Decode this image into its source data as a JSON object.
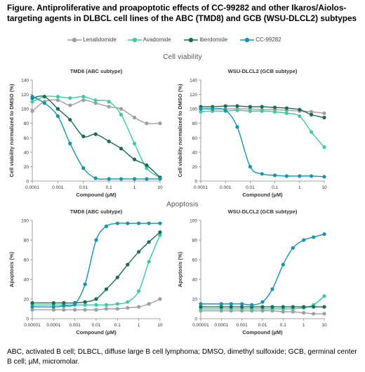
{
  "figure_title": "Figure. Antiproliferative and proapoptotic effects of CC-99282 and other Ikaros/Aiolos-targeting agents in DLBCL cell lines of the ABC (TMD8) and GCB (WSU-DLCL2) subtypes",
  "legend": [
    {
      "name": "Lenalidomide",
      "color": "#9e9e9e",
      "icon": "legend-line-marker"
    },
    {
      "name": "Avadomide",
      "color": "#3ec9a0",
      "icon": "legend-line-marker"
    },
    {
      "name": "Iberdomide",
      "color": "#1b6b4e",
      "icon": "legend-line-marker"
    },
    {
      "name": "CC-99282",
      "color": "#1593b0",
      "icon": "legend-line-marker"
    }
  ],
  "sections": {
    "viability": "Cell viability",
    "apoptosis": "Apoptosis"
  },
  "footnote": "ABC, activated B cell; DLBCL, diffuse large B cell lymphoma; DMSO, dimethyl sulfoxide; GCB, germinal center B cell; µM, micromolar.",
  "chart_data": [
    {
      "type": "scatter",
      "title": "TMD8 (ABC subtype)",
      "xlabel": "Compound (µM)",
      "ylabel": "Cell viability normalized to DMSO (%)",
      "xscale": "log",
      "xlim": [
        0.0001,
        10
      ],
      "ylim": [
        0,
        140
      ],
      "x_ticks": [
        "0.0001",
        "0.001",
        "0.01",
        "0.1",
        "1",
        "10"
      ],
      "y_ticks": [
        "0",
        "20",
        "40",
        "60",
        "80",
        "100",
        "120",
        "140"
      ],
      "grid": false,
      "series": [
        {
          "name": "Lenalidomide",
          "color": "#9e9e9e",
          "x": [
            0.0001,
            0.0003,
            0.001,
            0.003,
            0.01,
            0.03,
            0.1,
            0.3,
            1,
            3,
            10
          ],
          "y": [
            97,
            110,
            112,
            105,
            112,
            108,
            103,
            100,
            88,
            80,
            80
          ]
        },
        {
          "name": "Avadomide",
          "color": "#3ec9a0",
          "x": [
            0.0001,
            0.0003,
            0.001,
            0.003,
            0.01,
            0.03,
            0.1,
            0.3,
            1,
            3,
            10
          ],
          "y": [
            110,
            117,
            117,
            115,
            117,
            112,
            110,
            92,
            52,
            18,
            5
          ]
        },
        {
          "name": "Iberdomide",
          "color": "#1b6b4e",
          "x": [
            0.0001,
            0.0003,
            0.001,
            0.003,
            0.01,
            0.03,
            0.1,
            0.3,
            1,
            3,
            10
          ],
          "y": [
            115,
            117,
            100,
            85,
            62,
            65,
            55,
            45,
            30,
            22,
            5
          ]
        },
        {
          "name": "CC-99282",
          "color": "#1593b0",
          "x": [
            0.0001,
            0.0003,
            0.001,
            0.003,
            0.01,
            0.03,
            0.1,
            0.3,
            1,
            3,
            10
          ],
          "y": [
            117,
            108,
            90,
            52,
            18,
            4,
            3,
            3,
            3,
            3,
            3
          ]
        }
      ]
    },
    {
      "type": "scatter",
      "title": "WSU-DLCL2 (GCB subtype)",
      "xlabel": "Compound (µM)",
      "ylabel": "Cell viability normalized to DMSO (%)",
      "xscale": "log",
      "xlim": [
        0.0001,
        10
      ],
      "ylim": [
        0,
        140
      ],
      "x_ticks": [
        "0.0001",
        "0.001",
        "0.01",
        "0.1",
        "1",
        "10"
      ],
      "y_ticks": [
        "0",
        "20",
        "40",
        "60",
        "80",
        "100",
        "120",
        "140"
      ],
      "grid": false,
      "series": [
        {
          "name": "Lenalidomide",
          "color": "#9e9e9e",
          "x": [
            0.0001,
            0.0003,
            0.001,
            0.003,
            0.01,
            0.03,
            0.1,
            0.3,
            1,
            3,
            10
          ],
          "y": [
            100,
            100,
            100,
            100,
            100,
            99,
            99,
            98,
            97,
            96,
            94
          ]
        },
        {
          "name": "Avadomide",
          "color": "#3ec9a0",
          "x": [
            0.0001,
            0.0003,
            0.001,
            0.003,
            0.01,
            0.03,
            0.1,
            0.3,
            1,
            3,
            10
          ],
          "y": [
            96,
            97,
            97,
            98,
            97,
            97,
            96,
            94,
            90,
            68,
            47
          ]
        },
        {
          "name": "Iberdomide",
          "color": "#1b6b4e",
          "x": [
            0.0001,
            0.0003,
            0.001,
            0.003,
            0.01,
            0.03,
            0.1,
            0.3,
            1,
            3,
            10
          ],
          "y": [
            103,
            103,
            104,
            104,
            103,
            103,
            102,
            101,
            99,
            92,
            88
          ]
        },
        {
          "name": "CC-99282",
          "color": "#1593b0",
          "x": [
            0.0001,
            0.0003,
            0.001,
            0.003,
            0.01,
            0.03,
            0.1,
            0.3,
            1,
            3,
            10
          ],
          "y": [
            100,
            100,
            98,
            75,
            20,
            10,
            8,
            7,
            7,
            7,
            6
          ]
        }
      ]
    },
    {
      "type": "scatter",
      "title": "TMD8 (ABC subtype)",
      "xlabel": "Compound (µM)",
      "ylabel": "Apoptosis (%)",
      "xscale": "log",
      "xlim": [
        1e-05,
        10
      ],
      "ylim": [
        0,
        100
      ],
      "x_ticks": [
        "0.00001",
        "0.0001",
        "0.001",
        "0.01",
        "0.1",
        "1",
        "10"
      ],
      "y_ticks": [
        "0",
        "20",
        "40",
        "60",
        "80",
        "100"
      ],
      "grid": false,
      "series": [
        {
          "name": "Lenalidomide",
          "color": "#9e9e9e",
          "x": [
            1e-05,
            0.0001,
            0.0003,
            0.001,
            0.003,
            0.01,
            0.03,
            0.1,
            0.3,
            1,
            3,
            10
          ],
          "y": [
            9,
            9,
            9,
            9,
            9,
            9,
            10,
            10,
            11,
            12,
            15,
            20
          ]
        },
        {
          "name": "Avadomide",
          "color": "#3ec9a0",
          "x": [
            1e-05,
            0.0001,
            0.0003,
            0.001,
            0.003,
            0.01,
            0.03,
            0.1,
            0.3,
            1,
            3,
            10
          ],
          "y": [
            14,
            14,
            14,
            14,
            14,
            14,
            14,
            15,
            17,
            28,
            58,
            85
          ]
        },
        {
          "name": "Iberdomide",
          "color": "#1b6b4e",
          "x": [
            1e-05,
            0.0001,
            0.0003,
            0.001,
            0.003,
            0.01,
            0.03,
            0.1,
            0.3,
            1,
            3,
            10
          ],
          "y": [
            16,
            16,
            16,
            16,
            17,
            20,
            30,
            42,
            55,
            68,
            78,
            88
          ]
        },
        {
          "name": "CC-99282",
          "color": "#1593b0",
          "x": [
            1e-05,
            0.0001,
            0.0003,
            0.001,
            0.003,
            0.01,
            0.03,
            0.1,
            0.3,
            1,
            3,
            10
          ],
          "y": [
            12,
            12,
            13,
            15,
            35,
            80,
            94,
            97,
            97,
            97,
            97,
            97
          ]
        }
      ]
    },
    {
      "type": "scatter",
      "title": "WSU-DLCL2 (GCB subtype)",
      "xlabel": "Compound (µM)",
      "ylabel": "Apoptosis (%)",
      "xscale": "log",
      "xlim": [
        1e-05,
        10
      ],
      "ylim": [
        0,
        100
      ],
      "x_ticks": [
        "0.00001",
        "0.0001",
        "0.001",
        "0.01",
        "0.1",
        "1",
        "10"
      ],
      "y_ticks": [
        "0",
        "20",
        "40",
        "60",
        "80",
        "100"
      ],
      "grid": false,
      "series": [
        {
          "name": "Lenalidomide",
          "color": "#9e9e9e",
          "x": [
            1e-05,
            0.0001,
            0.0003,
            0.001,
            0.003,
            0.01,
            0.03,
            0.1,
            0.3,
            1,
            3,
            10
          ],
          "y": [
            8,
            8,
            8,
            8,
            8,
            8,
            8,
            7,
            7,
            6,
            5,
            5
          ]
        },
        {
          "name": "Avadomide",
          "color": "#3ec9a0",
          "x": [
            1e-05,
            0.0001,
            0.0003,
            0.001,
            0.003,
            0.01,
            0.03,
            0.1,
            0.3,
            1,
            3,
            10
          ],
          "y": [
            10,
            10,
            10,
            10,
            10,
            10,
            10,
            10,
            10,
            11,
            14,
            23
          ]
        },
        {
          "name": "Iberdomide",
          "color": "#1b6b4e",
          "x": [
            1e-05,
            0.0001,
            0.0003,
            0.001,
            0.003,
            0.01,
            0.03,
            0.1,
            0.3,
            1,
            3,
            10
          ],
          "y": [
            12,
            12,
            12,
            12,
            12,
            12,
            12,
            12,
            12,
            12,
            12,
            12
          ]
        },
        {
          "name": "CC-99282",
          "color": "#1593b0",
          "x": [
            1e-05,
            0.0001,
            0.0003,
            0.001,
            0.003,
            0.01,
            0.03,
            0.1,
            0.3,
            1,
            3,
            10
          ],
          "y": [
            15,
            15,
            15,
            15,
            14,
            17,
            30,
            55,
            72,
            80,
            83,
            86
          ]
        }
      ]
    }
  ]
}
